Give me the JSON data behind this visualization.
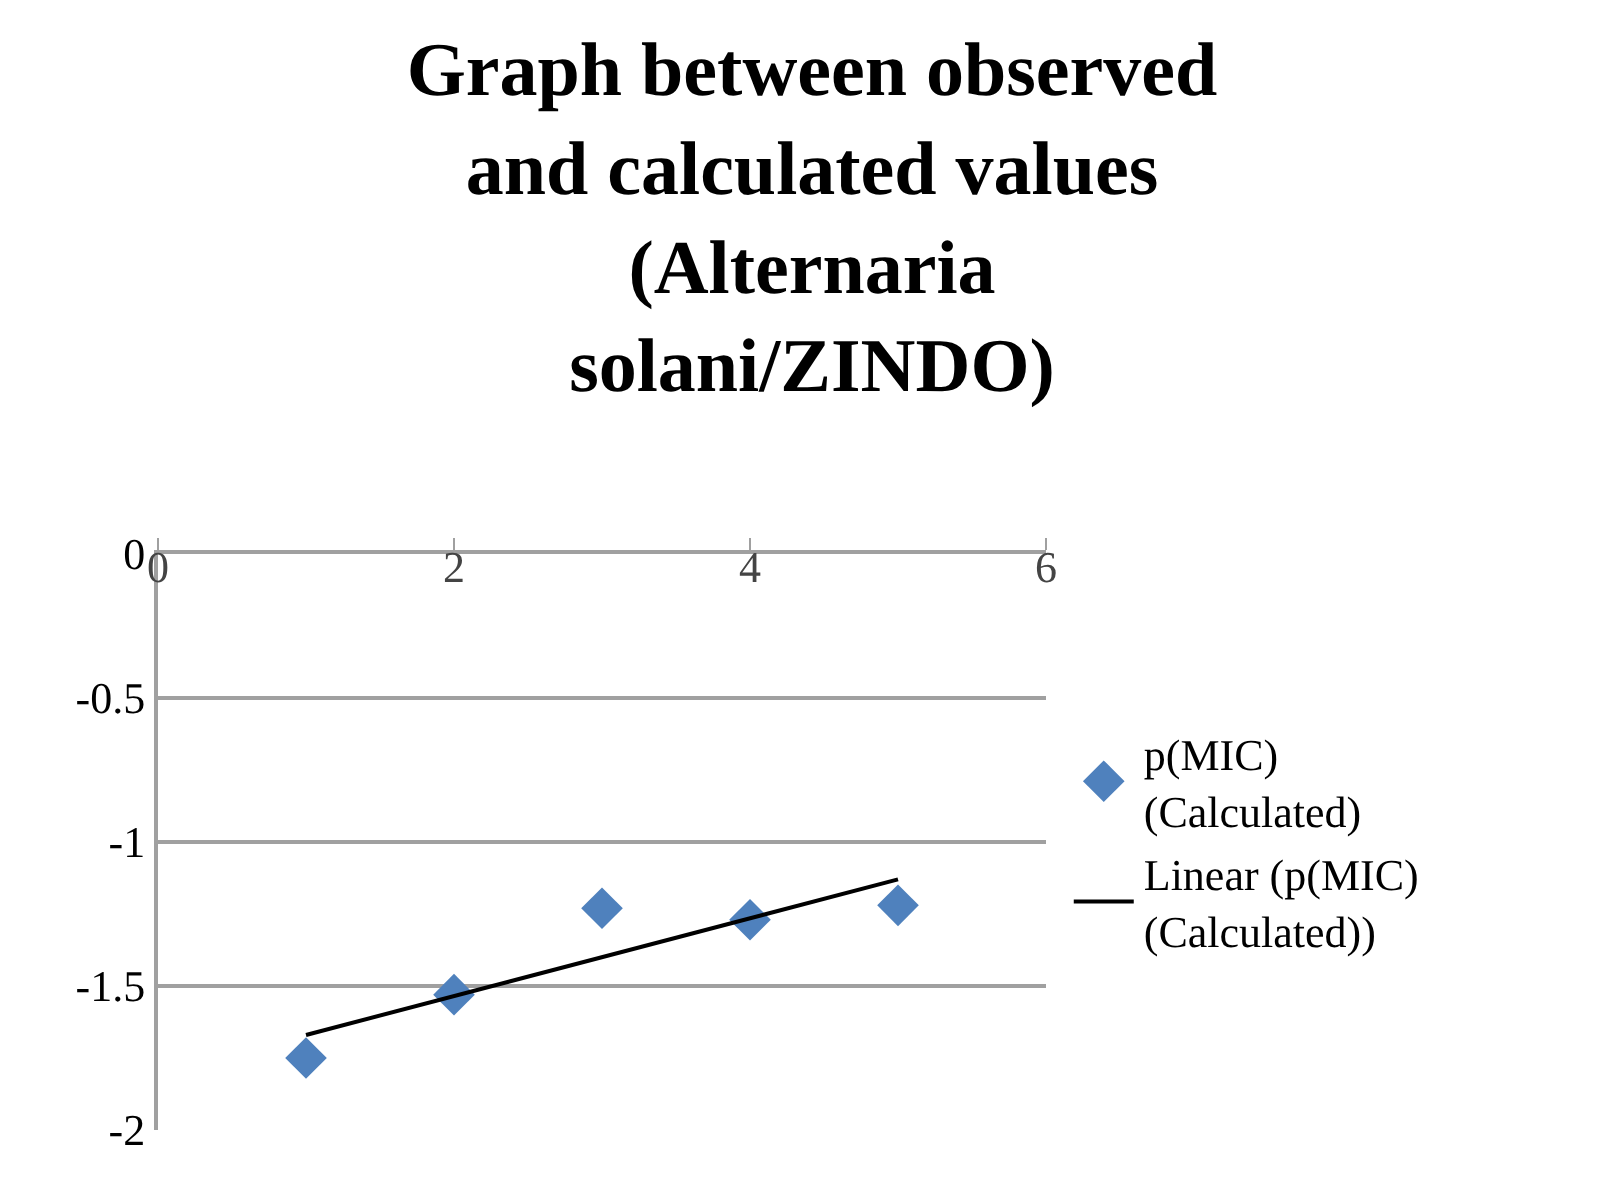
{
  "chart_data": {
    "type": "scatter",
    "title": "Graph between observed and calculated values (Alternaria solani/ZINDO)",
    "series": [
      {
        "name": "p(MIC) (Calculated)",
        "color": "#4f81bd",
        "marker": "diamond",
        "x": [
          1,
          2,
          3,
          4,
          5
        ],
        "values": [
          -1.75,
          -1.53,
          -1.23,
          -1.27,
          -1.22
        ]
      },
      {
        "name": "Linear (p(MIC) (Calculated))",
        "type": "line",
        "color": "#000000",
        "marker": "none",
        "line_style": "solid",
        "x": [
          1,
          5
        ],
        "values": [
          -1.67,
          -1.13
        ]
      }
    ],
    "xlim": [
      0,
      6
    ],
    "xticks": [
      0,
      2,
      4,
      6
    ],
    "ylim": [
      -2,
      0
    ],
    "yticks": [
      0,
      -0.5,
      -1,
      -1.5,
      -2
    ],
    "grid": "y",
    "legend": "right"
  }
}
